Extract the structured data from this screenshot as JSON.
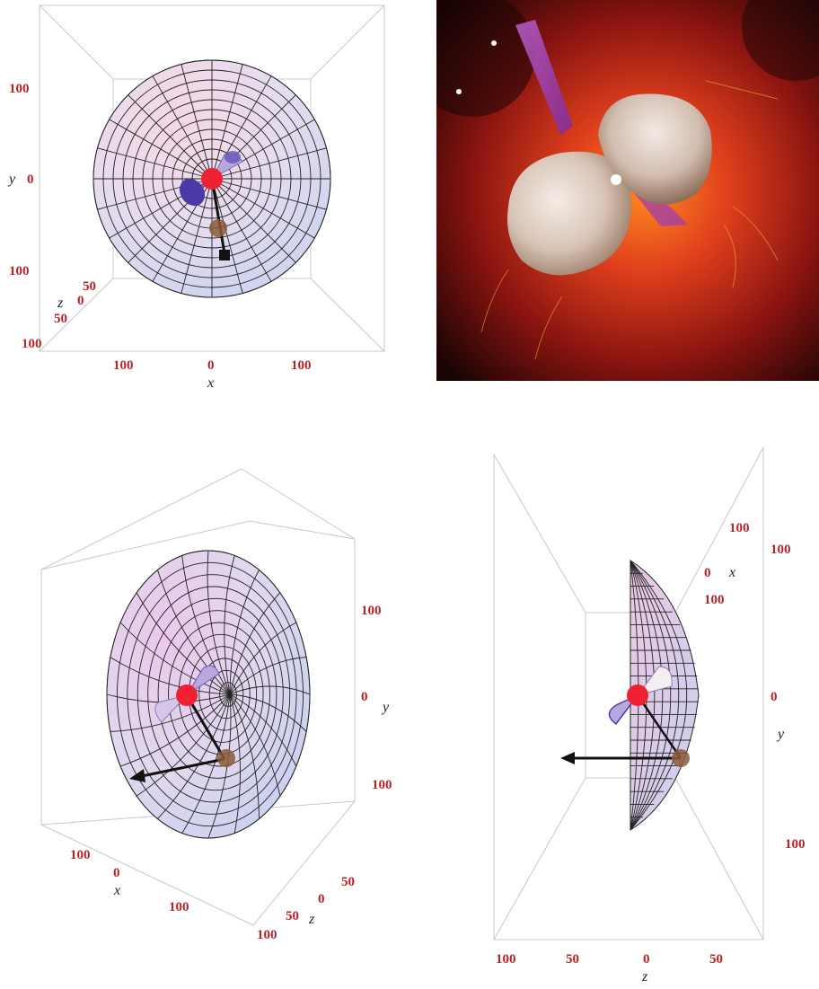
{
  "panel_top_left": {
    "ticks": {
      "y_upper": "100",
      "y_center": "0",
      "y_lower": "100",
      "z_50a": "50",
      "z_0": "0",
      "z_50b": "50",
      "z_100": "100",
      "x_left": "100",
      "x_center": "0",
      "x_right": "100"
    },
    "axes": {
      "x": "x",
      "y": "y",
      "z": "z"
    }
  },
  "panel_top_right": {},
  "panel_bottom_left": {
    "ticks": {
      "y_upper": "100",
      "y_center": "0",
      "y_lower": "100",
      "x_left": "100",
      "x_center": "0",
      "x_right": "100",
      "z_50a": "50",
      "z_0": "0",
      "z_50b": "50",
      "z_100": "100"
    },
    "axes": {
      "x": "x",
      "y": "y",
      "z": "z"
    }
  },
  "panel_bottom_right": {
    "ticks": {
      "y_upper": "100",
      "y_center": "0",
      "y_lower": "100",
      "x_upper": "100",
      "x_center": "0",
      "x_lower": "100",
      "z_left": "100",
      "z_50a": "50",
      "z_center": "0",
      "z_50b": "50"
    },
    "axes": {
      "x": "x",
      "y": "y",
      "z": "z"
    }
  },
  "colors": {
    "star": "#ee2233",
    "companion": "#8a5a3a",
    "cone": "#5a4aa8",
    "nebula_glow": "#c8321a",
    "lobe": "#e8dcd4"
  }
}
